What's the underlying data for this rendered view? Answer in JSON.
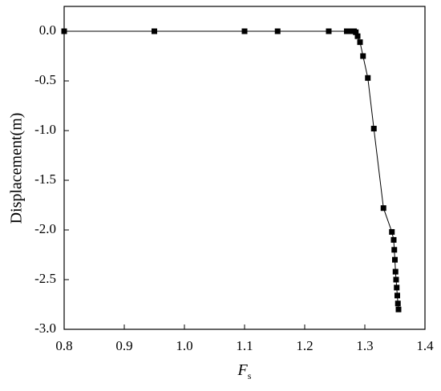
{
  "chart_data": {
    "type": "line",
    "ylabel": "Displacement(m)",
    "xlabel_base": "F",
    "xlabel_sub": "s",
    "x": [
      0.8,
      0.95,
      1.1,
      1.155,
      1.24,
      1.27,
      1.274,
      1.278,
      1.282,
      1.285,
      1.288,
      1.292,
      1.297,
      1.305,
      1.315,
      1.331,
      1.345,
      1.348,
      1.349,
      1.35,
      1.351,
      1.352,
      1.353,
      1.354,
      1.355,
      1.356
    ],
    "series": [
      {
        "color": "#000000",
        "values": [
          0,
          0,
          0,
          0,
          0,
          0,
          0,
          0,
          0,
          -0.01,
          -0.05,
          -0.11,
          -0.25,
          -0.47,
          -0.98,
          -1.78,
          -2.02,
          -2.1,
          -2.2,
          -2.3,
          -2.42,
          -2.5,
          -2.58,
          -2.66,
          -2.74,
          -2.8
        ]
      }
    ],
    "xlim": [
      0.8,
      1.4
    ],
    "xticks": [
      0.8,
      0.9,
      {
        "value": 1,
        "label": "1.0"
      },
      1.1,
      1.2,
      1.3,
      1.4
    ],
    "ylim": [
      -3,
      0.25
    ],
    "yticks": [
      {
        "value": 0,
        "label": "0.0"
      },
      -0.5,
      {
        "value": -1,
        "label": "-1.0"
      },
      -1.5,
      {
        "value": -2,
        "label": "-2.0"
      },
      -2.5,
      {
        "value": -3,
        "label": "-3.0"
      }
    ],
    "grid": false
  }
}
